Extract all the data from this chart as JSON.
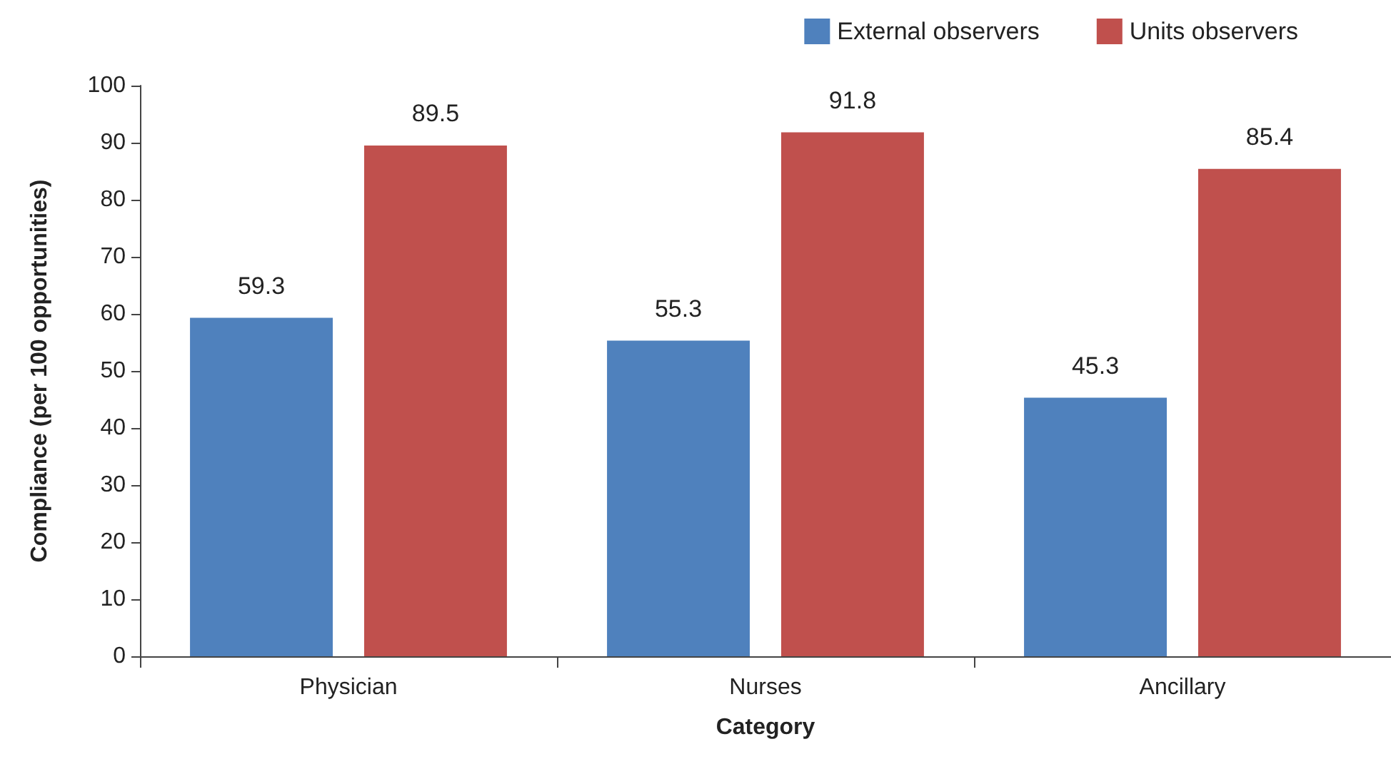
{
  "chart_data": {
    "type": "bar",
    "xlabel": "Category",
    "ylabel": "Compliance (per 100 opportunities)",
    "categories": [
      "Physician",
      "Nurses",
      "Ancillary"
    ],
    "series": [
      {
        "name": "External observers",
        "color": "#4f81bd",
        "values": [
          59.3,
          55.3,
          45.3
        ]
      },
      {
        "name": "Units observers",
        "color": "#c0504d",
        "values": [
          89.5,
          91.8,
          85.4
        ]
      }
    ],
    "ylim": [
      0,
      100
    ],
    "yticks": [
      0,
      10,
      20,
      30,
      40,
      50,
      60,
      70,
      80,
      90,
      100
    ],
    "data_labels": true,
    "grid": false,
    "legend": "top right"
  }
}
